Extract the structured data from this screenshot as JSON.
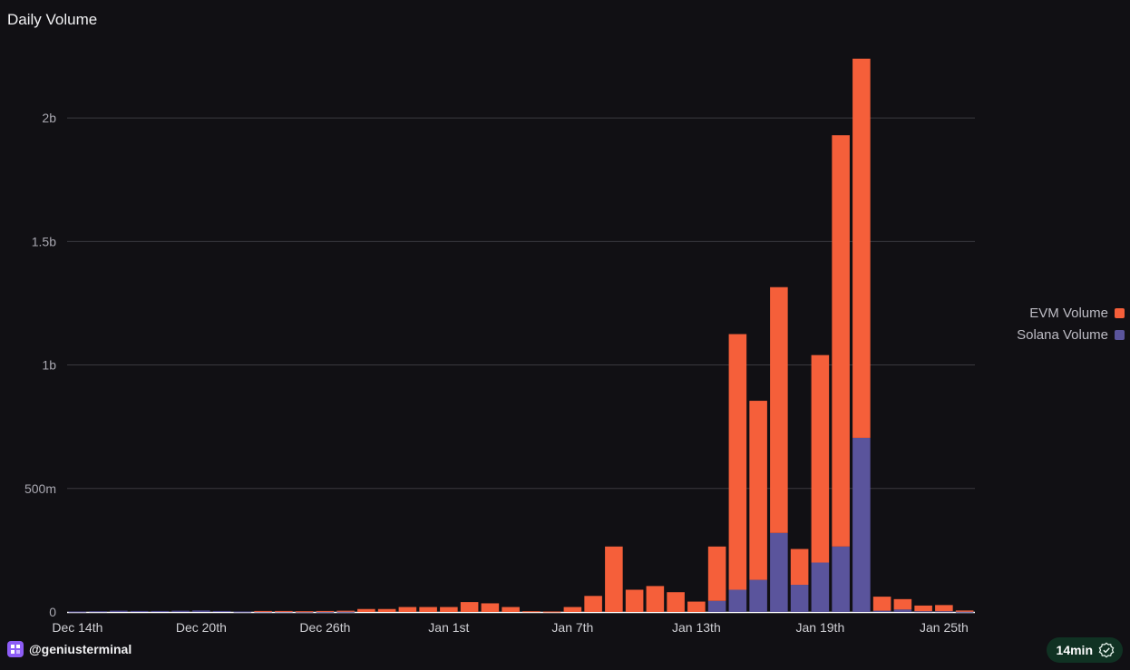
{
  "header": {
    "title": "Daily Volume"
  },
  "colors": {
    "evm": "#f55f3a",
    "solana": "#5a549c",
    "grid": "#3a393f",
    "background": "#111014"
  },
  "legend": {
    "evm_label": "EVM Volume",
    "solana_label": "Solana Volume"
  },
  "footer": {
    "brand": "@geniusterminal",
    "freshness": "14min"
  },
  "chart_data": {
    "type": "bar",
    "stacked": true,
    "title": "Daily Volume",
    "xlabel": "",
    "ylabel": "",
    "ylim": [
      0,
      2250000000
    ],
    "yticks": [
      {
        "value": 0,
        "label": "0"
      },
      {
        "value": 500000000,
        "label": "500m"
      },
      {
        "value": 1000000000,
        "label": "1b"
      },
      {
        "value": 1500000000,
        "label": "1.5b"
      },
      {
        "value": 2000000000,
        "label": "2b"
      }
    ],
    "xticks": [
      {
        "index": 0,
        "label": "Dec 14th"
      },
      {
        "index": 6,
        "label": "Dec 20th"
      },
      {
        "index": 12,
        "label": "Dec 26th"
      },
      {
        "index": 18,
        "label": "Jan 1st"
      },
      {
        "index": 24,
        "label": "Jan 7th"
      },
      {
        "index": 30,
        "label": "Jan 13th"
      },
      {
        "index": 36,
        "label": "Jan 19th"
      },
      {
        "index": 42,
        "label": "Jan 25th"
      }
    ],
    "categories": [
      "Dec 14",
      "Dec 15",
      "Dec 16",
      "Dec 17",
      "Dec 18",
      "Dec 19",
      "Dec 20",
      "Dec 21",
      "Dec 22",
      "Dec 23",
      "Dec 24",
      "Dec 25",
      "Dec 26",
      "Dec 27",
      "Dec 28",
      "Dec 29",
      "Dec 30",
      "Dec 31",
      "Jan 1",
      "Jan 2",
      "Jan 3",
      "Jan 4",
      "Jan 5",
      "Jan 6",
      "Jan 7",
      "Jan 8",
      "Jan 9",
      "Jan 10",
      "Jan 11",
      "Jan 12",
      "Jan 13",
      "Jan 14",
      "Jan 15",
      "Jan 16",
      "Jan 17",
      "Jan 18",
      "Jan 19",
      "Jan 20",
      "Jan 21",
      "Jan 22",
      "Jan 23",
      "Jan 24",
      "Jan 25",
      "Jan 26"
    ],
    "series": [
      {
        "name": "Solana Volume",
        "values": [
          2000000,
          3000000,
          5000000,
          4000000,
          4000000,
          5000000,
          6000000,
          4000000,
          2000000,
          2000000,
          2000000,
          1000000,
          1000000,
          1000000,
          0,
          0,
          0,
          0,
          0,
          0,
          0,
          0,
          0,
          0,
          0,
          0,
          0,
          0,
          0,
          0,
          0,
          45000000,
          90000000,
          130000000,
          320000000,
          110000000,
          200000000,
          265000000,
          705000000,
          5000000,
          10000000,
          3000000,
          3000000,
          1000000
        ]
      },
      {
        "name": "EVM Volume",
        "values": [
          0,
          0,
          0,
          0,
          0,
          0,
          0,
          0,
          0,
          2000000,
          2000000,
          2000000,
          3000000,
          4000000,
          12000000,
          12000000,
          20000000,
          20000000,
          20000000,
          40000000,
          35000000,
          20000000,
          3000000,
          2000000,
          20000000,
          65000000,
          265000000,
          90000000,
          105000000,
          80000000,
          42000000,
          220000000,
          1035000000,
          725000000,
          995000000,
          145000000,
          840000000,
          1665000000,
          1535000000,
          57000000,
          42000000,
          23000000,
          25000000,
          5000000
        ]
      }
    ]
  }
}
